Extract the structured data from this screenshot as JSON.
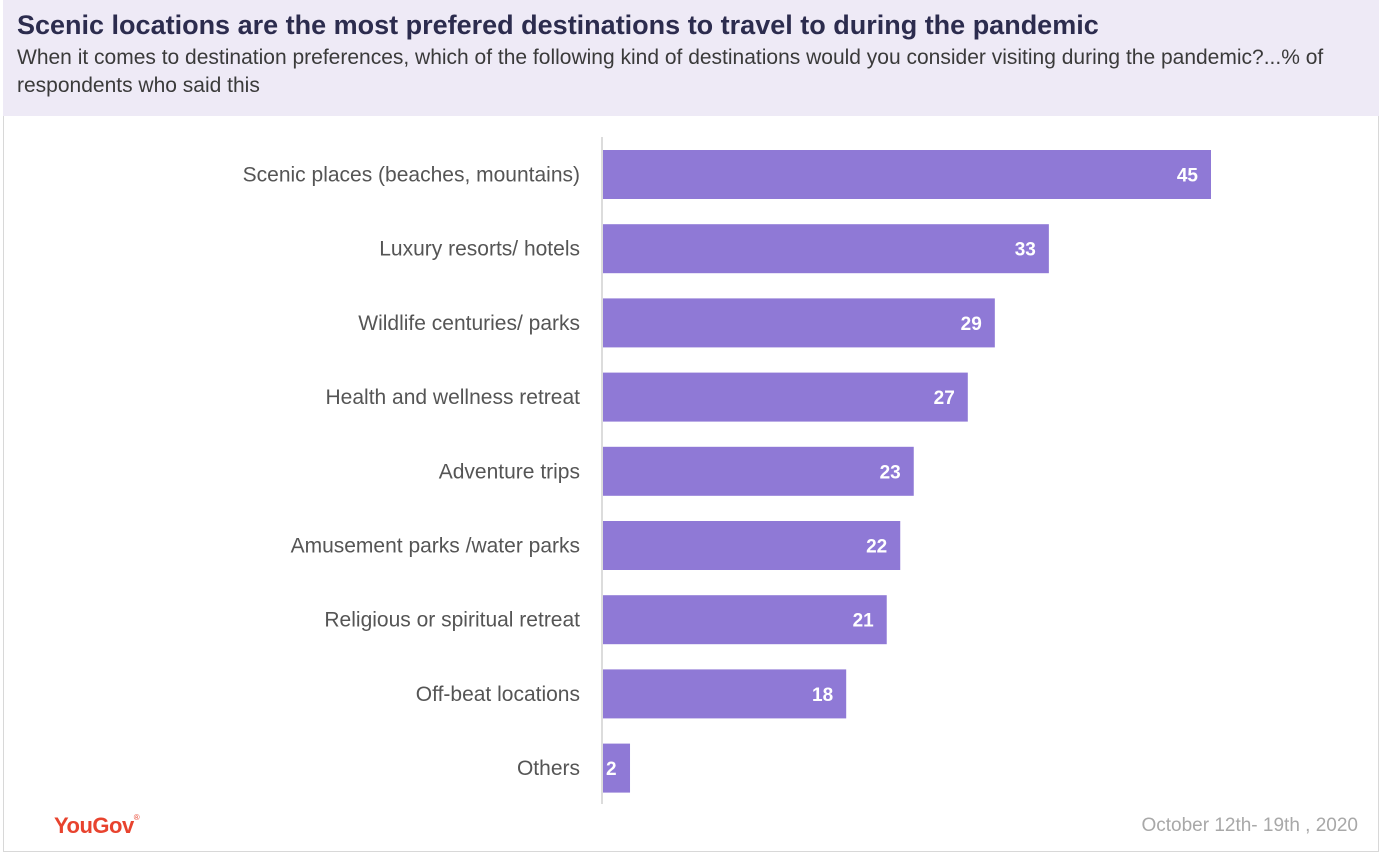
{
  "header": {
    "title": "Scenic locations are the most prefered destinations to travel to during the pandemic",
    "subtitle": "When it comes to destination preferences, which of the following kind of destinations would you consider visiting during the pandemic?...% of respondents who said this"
  },
  "footer": {
    "brand": "YouGov",
    "date": "October 12th- 19th , 2020"
  },
  "colors": {
    "bar": "#8f79d6",
    "header_bg": "#eeeaf6",
    "brand": "#e8432e"
  },
  "chart_data": {
    "type": "bar",
    "orientation": "horizontal",
    "categories": [
      "Scenic places (beaches, mountains)",
      "Luxury resorts/ hotels",
      "Wildlife centuries/ parks",
      "Health and wellness retreat",
      "Adventure trips",
      "Amusement parks /water parks",
      "Religious or spiritual retreat",
      "Off-beat locations",
      "Others"
    ],
    "values": [
      45,
      33,
      29,
      27,
      23,
      22,
      21,
      18,
      2
    ],
    "xlim": [
      0,
      55
    ],
    "grid": false,
    "legend": "none"
  }
}
